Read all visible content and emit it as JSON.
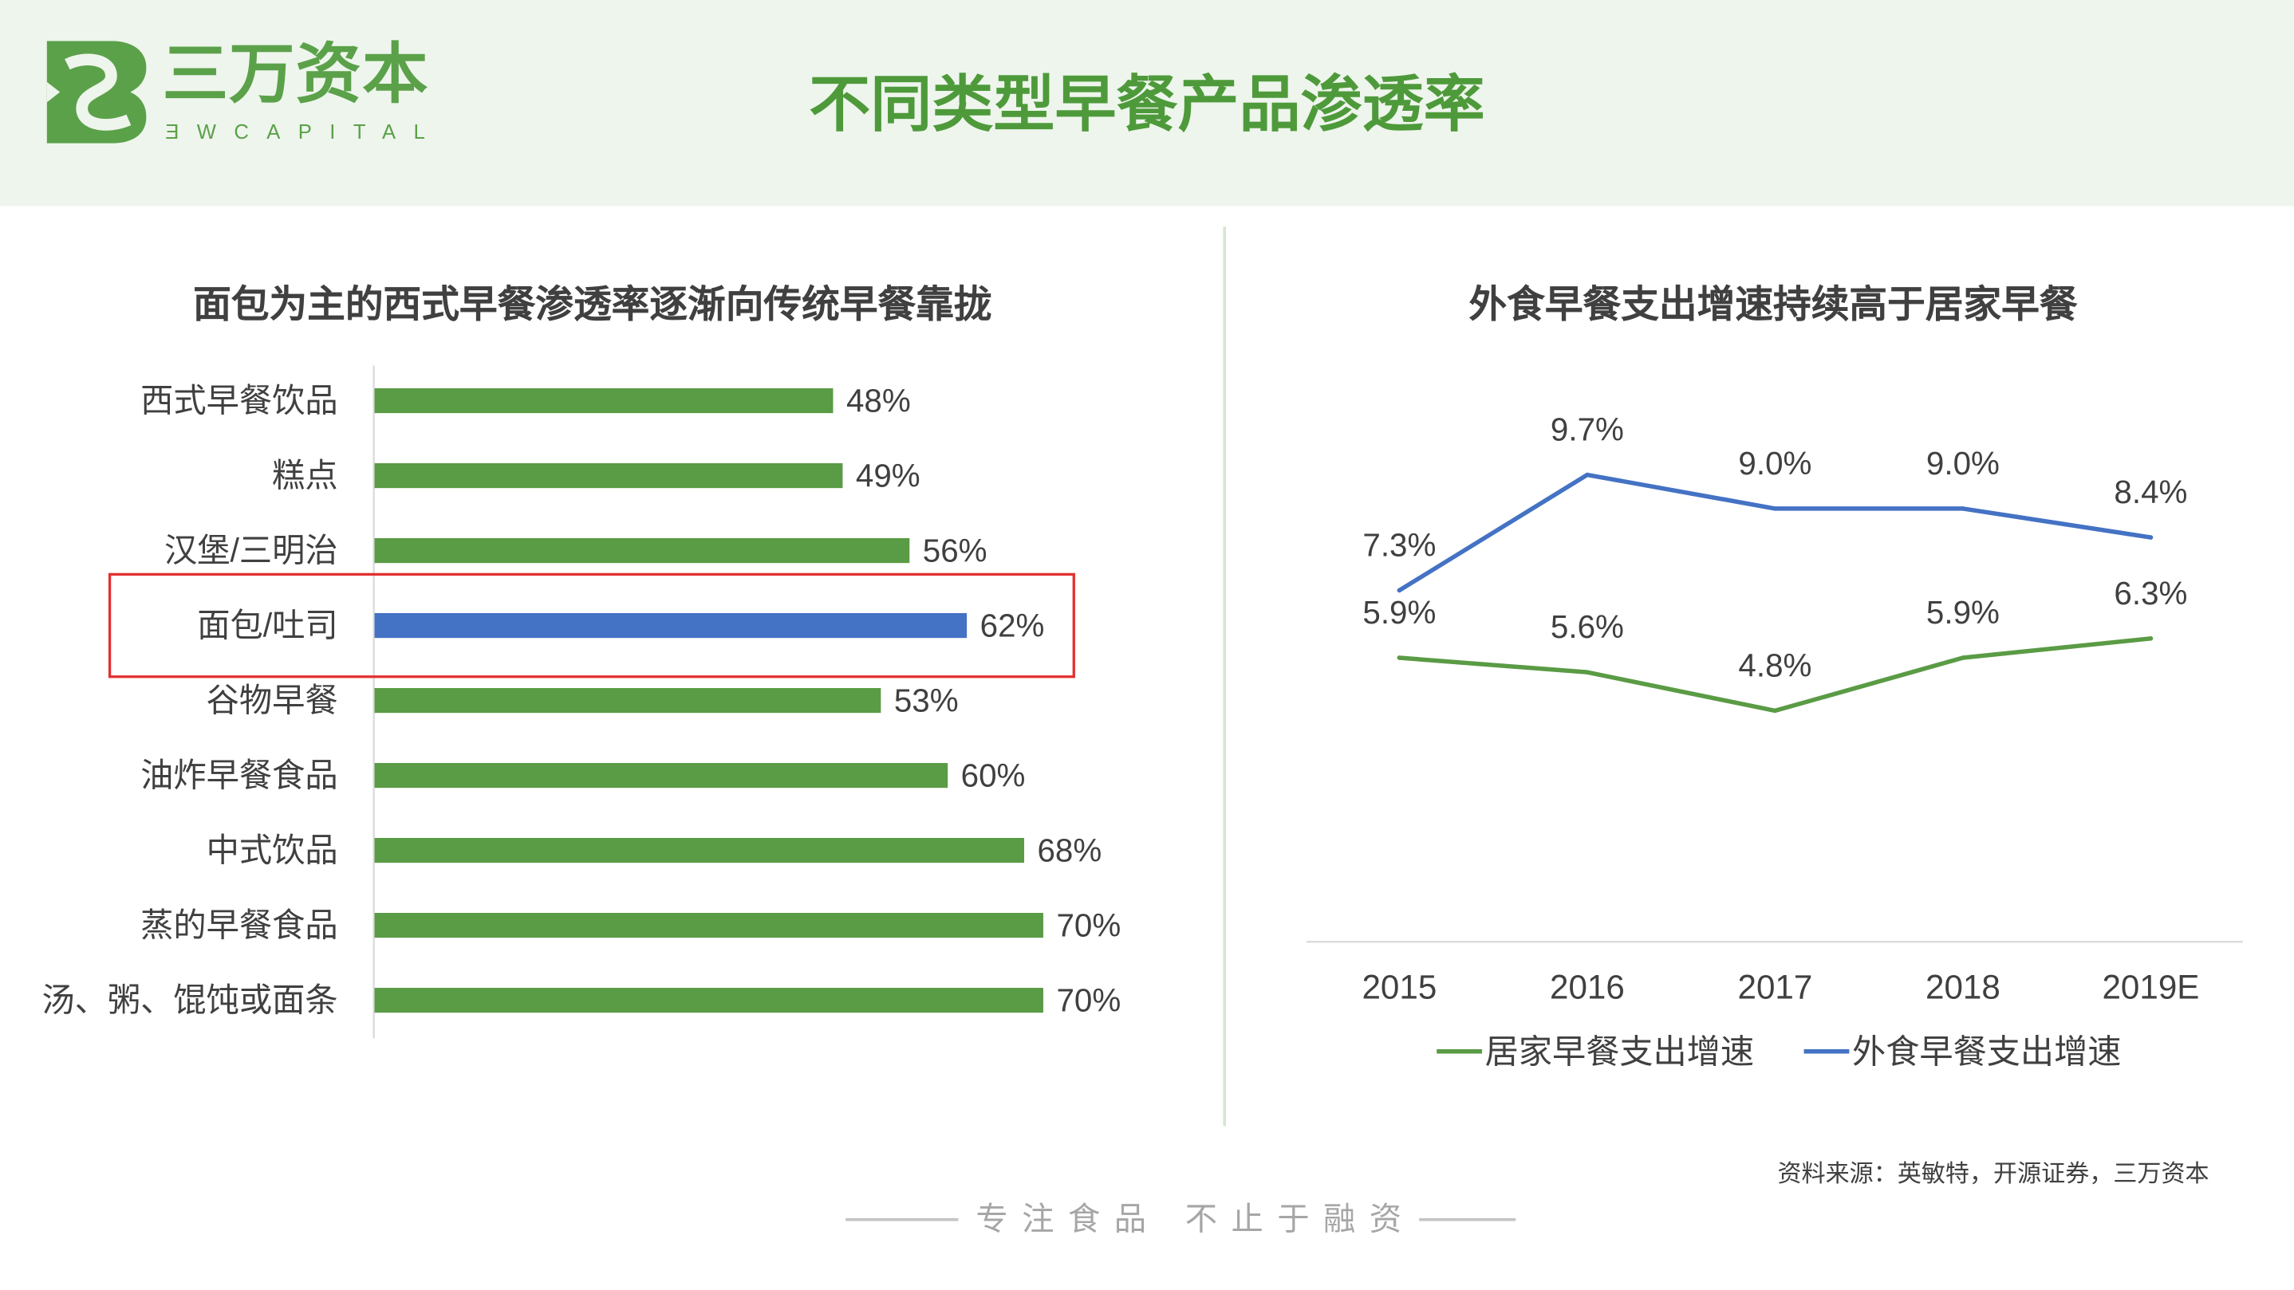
{
  "header": {
    "logo": {
      "name": "三万资本",
      "tagline": "ƎWCAPITAL",
      "mark_icon": "sanwan-logo-mark-icon"
    },
    "title": "不同类型早餐产品渗透率"
  },
  "colors": {
    "brand_green": "#5ba14a",
    "title_green": "#4e9a3b",
    "header_bg": "#eef5ec",
    "bar_green": "#5a9b45",
    "highlight_blue": "#4472c4",
    "highlight_box_red": "#e3302f",
    "axis_gray": "#d9d9d9",
    "text_dark": "#404040",
    "slogan_gray": "#a6a6a6"
  },
  "chart_data": [
    {
      "type": "bar",
      "orientation": "horizontal",
      "title": "面包为主的西式早餐渗透率逐渐向传统早餐靠拢",
      "categories": [
        "西式早餐饮品",
        "糕点",
        "汉堡/三明治",
        "面包/吐司",
        "谷物早餐",
        "油炸早餐食品",
        "中式饮品",
        "蒸的早餐食品",
        "汤、粥、馄饨或面条"
      ],
      "values": [
        48,
        49,
        56,
        62,
        53,
        60,
        68,
        70,
        70
      ],
      "data_labels": [
        "48%",
        "49%",
        "56%",
        "62%",
        "53%",
        "60%",
        "68%",
        "70%",
        "70%"
      ],
      "highlight_index": 3,
      "bar_color": "#5a9b45",
      "highlight_color": "#4472c4",
      "xlim": [
        0,
        80
      ],
      "grid": false,
      "legend_position": "none"
    },
    {
      "type": "line",
      "title": "外食早餐支出增速持续高于居家早餐",
      "x": [
        "2015",
        "2016",
        "2017",
        "2018",
        "2019E"
      ],
      "series": [
        {
          "name": "居家早餐支出增速",
          "values": [
            5.9,
            5.6,
            4.8,
            5.9,
            6.3
          ],
          "data_labels": [
            "5.9%",
            "5.6%",
            "4.8%",
            "5.9%",
            "6.3%"
          ],
          "color": "#5a9b45"
        },
        {
          "name": "外食早餐支出增速",
          "values": [
            7.3,
            9.7,
            9.0,
            9.0,
            8.4
          ],
          "data_labels": [
            "7.3%",
            "9.7%",
            "9.0%",
            "9.0%",
            "8.4%"
          ],
          "color": "#4472c4"
        }
      ],
      "ylim": [
        0,
        12
      ],
      "grid": false,
      "legend_position": "bottom"
    }
  ],
  "footer": {
    "source": "资料来源：英敏特，开源证券，三万资本",
    "slogan": [
      "专注食品",
      "不止于融资"
    ]
  }
}
